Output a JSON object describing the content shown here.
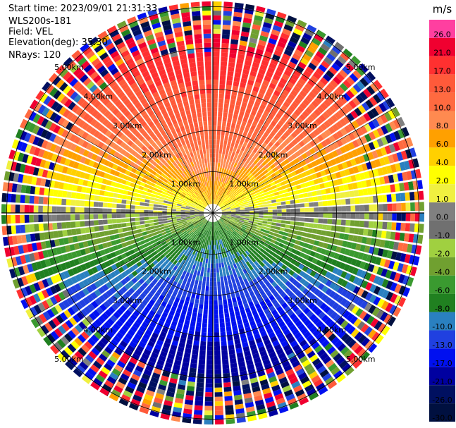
{
  "info": {
    "start_time": "Start time: 2023/09/01 21:31:33",
    "instrument": "WLS200s-181",
    "field": "Field: VEL",
    "elevation": "Elevation(deg): 35.30",
    "nrays": "NRays: 120"
  },
  "chart_data": {
    "type": "heatmap",
    "projection": "PPI polar",
    "field": "VEL",
    "units": "m/s",
    "n_rays": 120,
    "elevation_deg": 35.3,
    "range_rings_km": [
      1.0,
      2.0,
      3.0,
      4.0,
      5.0
    ],
    "range_ring_labels": [
      "1.00km",
      "2.00km",
      "3.00km",
      "4.00km",
      "5.00km"
    ],
    "colorbar": {
      "label": "m/s",
      "ticks": [
        "26.0",
        "21.0",
        "17.0",
        "13.0",
        "10.0",
        "8.0",
        "6.0",
        "4.0",
        "2.0",
        "1.0",
        "0.0",
        "-1.0",
        "-2.0",
        "-4.0",
        "-6.0",
        "-8.0",
        "-10.0",
        "-13.0",
        "-17.0",
        "-21.0",
        "-26.0",
        "-30.0"
      ],
      "colors": [
        "#ff3fa0",
        "#f00030",
        "#ff3030",
        "#ff5a3a",
        "#ff6a40",
        "#ff8a50",
        "#ffa000",
        "#ffd000",
        "#ffff00",
        "#f0f040",
        "#808080",
        "#707070",
        "#a0d040",
        "#70a030",
        "#3a9a30",
        "#208020",
        "#2a80c0",
        "#2040e0",
        "#0010f0",
        "#0000a0",
        "#001060",
        "#001040"
      ]
    },
    "velocity_pattern": "toward-radar negative to south, away-radar positive to north; noise beyond ~4 km"
  }
}
